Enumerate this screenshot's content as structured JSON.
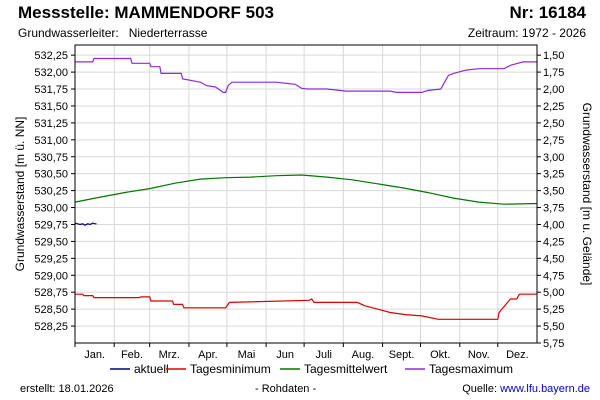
{
  "header": {
    "station": "Messstelle: MAMMENDORF 503",
    "number": "Nr: 16184",
    "aquifer_label": "Grundwasserleiter:",
    "aquifer_value": "Niederterrasse",
    "period": "Zeitraum: 1972 - 2026"
  },
  "footer": {
    "created_label": "erstellt:",
    "created_date": "18.01.2026",
    "raw": "- Rohdaten -",
    "source_label": "Quelle:",
    "source_url": "www.lfu.bayern.de"
  },
  "colors": {
    "aktuell": "#00008b",
    "min": "#dd0000",
    "mean": "#007700",
    "max": "#8a2be2",
    "grid": "#d9d9d9"
  },
  "chart_data": {
    "type": "line",
    "ylabel": "Grundwasserstand [m ü. NN]",
    "ylabel_right": "Grundwasserstand [m u. Gelände]",
    "months": [
      "Jan.",
      "Feb.",
      "Mrz.",
      "Apr.",
      "Mai",
      "Jun",
      "Juli",
      "Aug.",
      "Sept.",
      "Okt.",
      "Nov.",
      "Dez."
    ],
    "x_range": [
      1,
      366
    ],
    "ylim": [
      528.0,
      532.4
    ],
    "y_ticks": [
      "532,25",
      "532,00",
      "531,75",
      "531,50",
      "531,25",
      "531,00",
      "530,75",
      "530,50",
      "530,25",
      "530,00",
      "529,75",
      "529,50",
      "529,25",
      "529,00",
      "528,75",
      "528,50",
      "528,25"
    ],
    "y_tick_values": [
      532.25,
      532.0,
      531.75,
      531.5,
      531.25,
      531.0,
      530.75,
      530.5,
      530.25,
      530.0,
      529.75,
      529.5,
      529.25,
      529.0,
      528.75,
      528.5,
      528.25
    ],
    "y2_ticks": [
      "1,50",
      "1,75",
      "2,00",
      "2,25",
      "2,50",
      "2,75",
      "3,00",
      "3,25",
      "3,50",
      "3,75",
      "4,00",
      "4,25",
      "4,50",
      "4,75",
      "5,00",
      "5,25",
      "5,50",
      "5,75"
    ],
    "y2_tick_values": [
      1.5,
      1.75,
      2.0,
      2.25,
      2.5,
      2.75,
      3.0,
      3.25,
      3.5,
      3.75,
      4.0,
      4.25,
      4.5,
      4.75,
      5.0,
      5.25,
      5.5,
      5.75
    ],
    "legend": [
      "aktuell",
      "Tagesminimum",
      "Tagesmittelwert",
      "Tagesmaximum"
    ],
    "series": [
      {
        "name": "aktuell",
        "x": [
          1,
          3,
          5,
          7,
          9,
          11,
          13,
          15,
          17,
          18
        ],
        "values": [
          529.77,
          529.76,
          529.75,
          529.76,
          529.74,
          529.76,
          529.75,
          529.77,
          529.76,
          529.76
        ]
      },
      {
        "name": "Tagesminimum",
        "x": [
          1,
          7,
          8,
          15,
          16,
          52,
          53,
          60,
          61,
          78,
          79,
          86,
          87,
          110,
          115,
          120,
          123,
          186,
          188,
          190,
          224,
          230,
          240,
          250,
          262,
          275,
          288,
          296,
          335,
          336,
          345,
          350,
          352,
          366
        ],
        "values": [
          528.72,
          528.72,
          528.7,
          528.7,
          528.67,
          528.67,
          528.68,
          528.68,
          528.62,
          528.62,
          528.57,
          528.57,
          528.52,
          528.52,
          528.52,
          528.52,
          528.6,
          528.63,
          528.65,
          528.6,
          528.6,
          528.55,
          528.5,
          528.45,
          528.42,
          528.4,
          528.35,
          528.35,
          528.35,
          528.45,
          528.65,
          528.65,
          528.72,
          528.72
        ]
      },
      {
        "name": "Tagesmittelwert",
        "x": [
          1,
          20,
          40,
          60,
          80,
          100,
          120,
          140,
          160,
          180,
          200,
          220,
          240,
          260,
          280,
          300,
          320,
          340,
          366
        ],
        "values": [
          530.08,
          530.15,
          530.22,
          530.28,
          530.36,
          530.42,
          530.44,
          530.45,
          530.47,
          530.48,
          530.45,
          530.41,
          530.35,
          530.29,
          530.22,
          530.14,
          530.08,
          530.05,
          530.06
        ]
      },
      {
        "name": "Tagesmaximum",
        "x": [
          1,
          15,
          16,
          45,
          46,
          60,
          61,
          68,
          69,
          85,
          86,
          100,
          105,
          112,
          118,
          120,
          122,
          125,
          130,
          160,
          170,
          175,
          180,
          185,
          200,
          210,
          215,
          250,
          255,
          275,
          280,
          290,
          293,
          296,
          300,
          310,
          320,
          340,
          345,
          355,
          360,
          366
        ],
        "values": [
          532.15,
          532.15,
          532.2,
          532.2,
          532.13,
          532.13,
          532.08,
          532.08,
          531.98,
          531.98,
          531.9,
          531.85,
          531.8,
          531.78,
          531.7,
          531.7,
          531.8,
          531.85,
          531.85,
          531.85,
          531.83,
          531.82,
          531.76,
          531.75,
          531.75,
          531.73,
          531.72,
          531.72,
          531.7,
          531.7,
          531.73,
          531.75,
          531.85,
          531.95,
          531.98,
          532.03,
          532.05,
          532.05,
          532.1,
          532.15,
          532.15,
          532.15
        ]
      }
    ]
  }
}
